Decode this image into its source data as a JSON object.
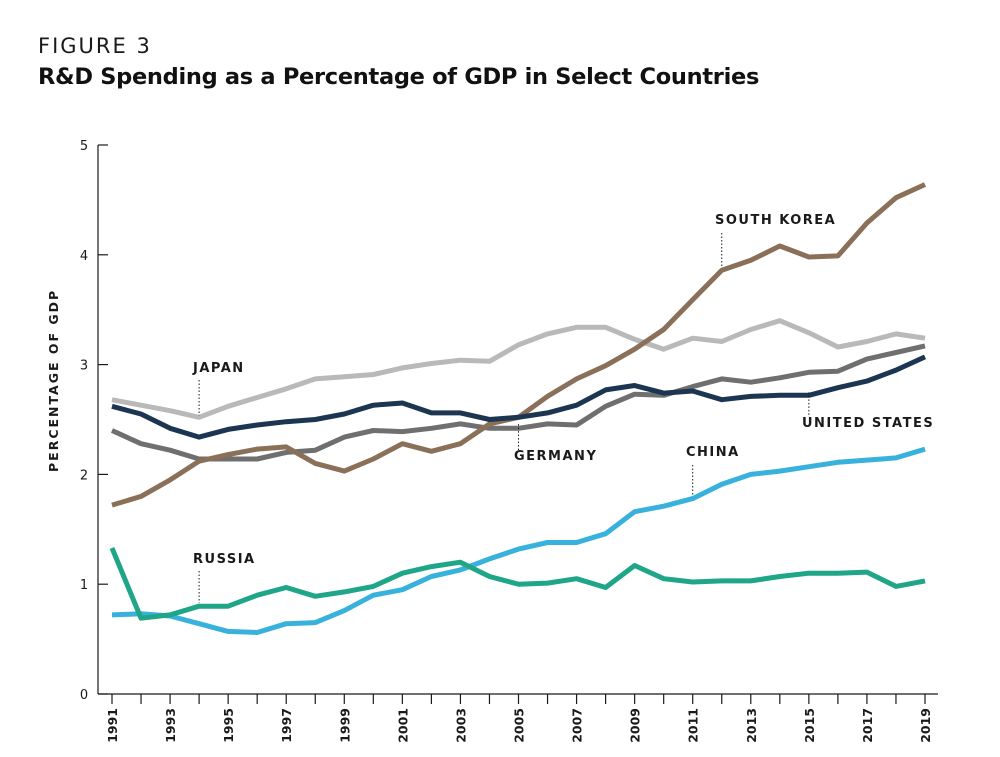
{
  "figure_label": "FIGURE 3",
  "colors": {
    "south_korea": "#8a7058",
    "japan": "#b9b9b9",
    "germany": "#6f6f6f",
    "united_states": "#1c3550",
    "china": "#38b2dc",
    "russia": "#1fa587",
    "axis": "#1a1a1a"
  },
  "chart_data": {
    "type": "line",
    "title": "R&D Spending as a Percentage of GDP in Select Countries",
    "xlabel": "",
    "ylabel": "PERCENTAGE OF GDP",
    "ylim": [
      0,
      5
    ],
    "xlim": [
      1991,
      2019
    ],
    "yticks": [
      "0",
      "1",
      "2",
      "3",
      "4",
      "5"
    ],
    "xticks": [
      "1991",
      "1993",
      "1995",
      "1997",
      "1999",
      "2001",
      "2003",
      "2005",
      "2007",
      "2009",
      "2011",
      "2013",
      "2015",
      "2017",
      "2019"
    ],
    "x": [
      1991,
      1992,
      1993,
      1994,
      1995,
      1996,
      1997,
      1998,
      1999,
      2000,
      2001,
      2002,
      2003,
      2004,
      2005,
      2006,
      2007,
      2008,
      2009,
      2010,
      2011,
      2012,
      2013,
      2014,
      2015,
      2016,
      2017,
      2018,
      2019
    ],
    "series": [
      {
        "name": "JAPAN",
        "key": "japan",
        "label_year": 1994,
        "label_value": 2.51,
        "values": [
          2.68,
          2.63,
          2.58,
          2.52,
          2.62,
          2.7,
          2.78,
          2.87,
          2.89,
          2.91,
          2.97,
          3.01,
          3.04,
          3.03,
          3.18,
          3.28,
          3.34,
          3.34,
          3.23,
          3.14,
          3.24,
          3.21,
          3.32,
          3.4,
          3.29,
          3.16,
          3.21,
          3.28,
          3.24
        ]
      },
      {
        "name": "GERMANY",
        "key": "germany",
        "label_year": 2005,
        "label_value": 2.43,
        "values": [
          2.4,
          2.28,
          2.22,
          2.14,
          2.14,
          2.14,
          2.2,
          2.22,
          2.34,
          2.4,
          2.39,
          2.42,
          2.46,
          2.42,
          2.42,
          2.46,
          2.45,
          2.62,
          2.73,
          2.72,
          2.8,
          2.87,
          2.84,
          2.88,
          2.93,
          2.94,
          3.05,
          3.11,
          3.17
        ]
      },
      {
        "name": "SOUTH KOREA",
        "key": "south_korea",
        "label_year": 2012,
        "label_value": 3.86,
        "values": [
          1.72,
          1.8,
          1.95,
          2.12,
          2.18,
          2.23,
          2.25,
          2.1,
          2.03,
          2.14,
          2.28,
          2.21,
          2.28,
          2.46,
          2.52,
          2.71,
          2.87,
          2.99,
          3.14,
          3.32,
          3.59,
          3.86,
          3.95,
          4.08,
          3.98,
          3.99,
          4.29,
          4.52,
          4.64
        ]
      },
      {
        "name": "UNITED STATES",
        "key": "united_states",
        "label_year": 2015,
        "label_value": 2.72,
        "values": [
          2.62,
          2.55,
          2.42,
          2.34,
          2.41,
          2.45,
          2.48,
          2.5,
          2.55,
          2.63,
          2.65,
          2.56,
          2.56,
          2.5,
          2.52,
          2.56,
          2.63,
          2.77,
          2.81,
          2.74,
          2.76,
          2.68,
          2.71,
          2.72,
          2.72,
          2.79,
          2.85,
          2.95,
          3.07
        ]
      },
      {
        "name": "CHINA",
        "key": "china",
        "label_year": 2011,
        "label_value": 1.78,
        "values": [
          0.72,
          0.73,
          0.71,
          0.64,
          0.57,
          0.56,
          0.64,
          0.65,
          0.76,
          0.9,
          0.95,
          1.07,
          1.13,
          1.23,
          1.32,
          1.38,
          1.38,
          1.46,
          1.66,
          1.71,
          1.78,
          1.91,
          2.0,
          2.03,
          2.07,
          2.11,
          2.13,
          2.15,
          2.23
        ]
      },
      {
        "name": "RUSSIA",
        "key": "russia",
        "label_year": 1994,
        "label_value": 0.8,
        "values": [
          1.33,
          0.69,
          0.72,
          0.8,
          0.8,
          0.9,
          0.97,
          0.89,
          0.93,
          0.98,
          1.1,
          1.16,
          1.2,
          1.07,
          1.0,
          1.01,
          1.05,
          0.97,
          1.17,
          1.05,
          1.02,
          1.03,
          1.03,
          1.07,
          1.1,
          1.1,
          1.11,
          0.98,
          1.03
        ]
      }
    ]
  }
}
